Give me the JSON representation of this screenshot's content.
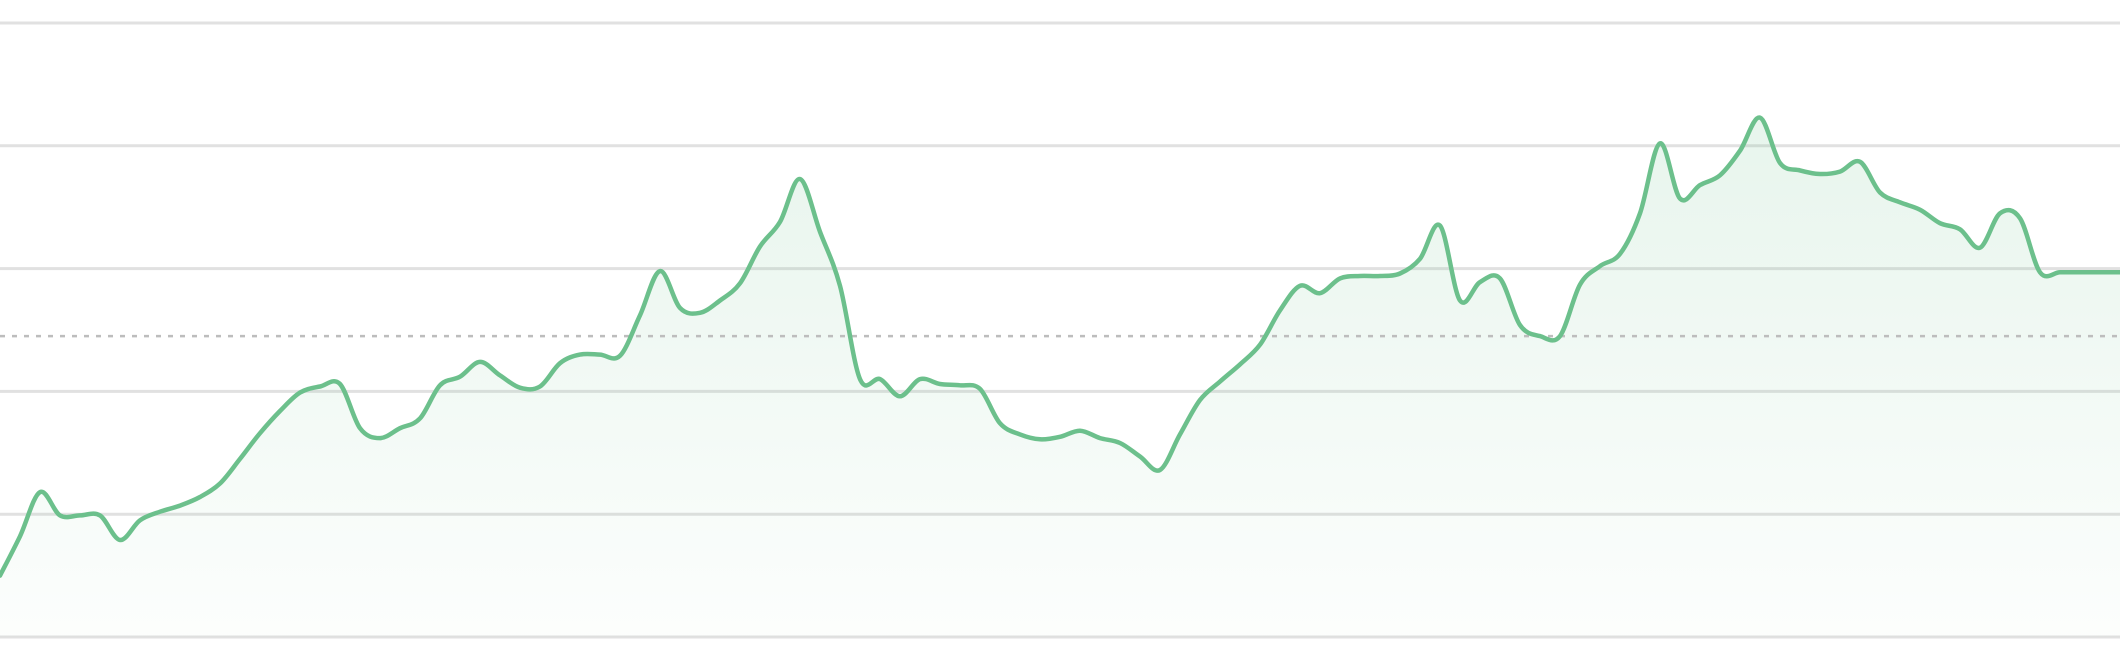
{
  "chart_data": {
    "type": "area",
    "title": "",
    "xlabel": "",
    "ylabel": "",
    "ylim": [
      0,
      5
    ],
    "grid": true,
    "gridlines": [
      0,
      1,
      2,
      3,
      4,
      5
    ],
    "reference_line": 2.45,
    "line_color": "#6cc08c",
    "fill_color": "#6cc08c",
    "xlim": [
      0,
      212
    ],
    "series": [
      {
        "x": [
          0,
          2,
          4,
          6,
          8,
          10,
          12,
          14,
          16,
          18,
          20,
          22,
          24,
          26,
          28,
          30,
          32,
          34,
          36,
          38,
          40,
          42,
          44,
          46,
          48,
          50,
          52,
          54,
          56,
          58,
          60,
          62,
          64,
          66,
          68,
          70,
          72,
          74,
          76,
          78,
          80,
          82,
          84,
          86,
          88,
          90,
          92,
          94,
          96,
          98,
          100,
          102,
          104,
          106,
          108,
          110,
          112,
          114,
          116,
          118,
          120,
          122,
          124,
          126,
          128,
          130,
          132,
          134,
          136,
          138,
          140,
          142,
          144,
          146,
          148,
          150,
          152,
          154,
          156,
          158,
          160,
          162,
          164,
          166,
          168,
          170,
          172,
          174,
          176,
          178,
          180,
          182,
          184,
          186,
          188,
          190,
          192,
          194,
          196,
          198,
          200,
          202,
          204,
          206,
          208,
          210,
          212
        ],
        "values": [
          0.5,
          0.82,
          1.18,
          0.99,
          0.99,
          0.99,
          0.79,
          0.95,
          1.02,
          1.07,
          1.14,
          1.25,
          1.45,
          1.66,
          1.84,
          1.99,
          2.04,
          2.06,
          1.7,
          1.62,
          1.7,
          1.78,
          2.05,
          2.12,
          2.24,
          2.13,
          2.03,
          2.04,
          2.23,
          2.3,
          2.3,
          2.29,
          2.62,
          2.98,
          2.68,
          2.64,
          2.74,
          2.88,
          3.18,
          3.38,
          3.73,
          3.3,
          2.86,
          2.1,
          2.1,
          1.96,
          2.1,
          2.06,
          2.05,
          2.02,
          1.74,
          1.65,
          1.61,
          1.63,
          1.68,
          1.62,
          1.58,
          1.47,
          1.36,
          1.65,
          1.93,
          2.08,
          2.22,
          2.38,
          2.66,
          2.86,
          2.8,
          2.92,
          2.94,
          2.94,
          2.96,
          3.08,
          3.35,
          2.74,
          2.89,
          2.92,
          2.54,
          2.45,
          2.45,
          2.87,
          3.02,
          3.12,
          3.45,
          4.02,
          3.57,
          3.68,
          3.76,
          3.96,
          4.23,
          3.86,
          3.8,
          3.77,
          3.79,
          3.87,
          3.62,
          3.54,
          3.48,
          3.37,
          3.32,
          3.17,
          3.45,
          3.41,
          2.97,
          2.97,
          2.97,
          2.97,
          2.97
        ]
      }
    ]
  }
}
